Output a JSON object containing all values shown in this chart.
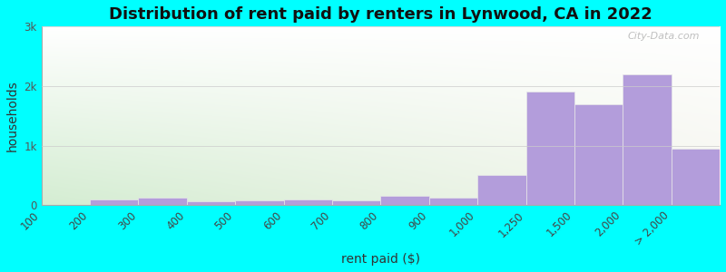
{
  "title": "Distribution of rent paid by renters in Lynwood, CA in 2022",
  "xlabel": "rent paid ($)",
  "ylabel": "households",
  "background_color": "#00FFFF",
  "bar_color": "#b39ddb",
  "bar_edge_color": "#e8e8e8",
  "ytick_labels": [
    "0",
    "1k",
    "2k",
    "3k"
  ],
  "ytick_values": [
    0,
    1000,
    2000,
    3000
  ],
  "ylim": [
    0,
    3000
  ],
  "bin_labels": [
    "100",
    "200",
    "300",
    "400",
    "500",
    "600",
    "700",
    "800",
    "900",
    "1,000",
    "1,250",
    "1,500",
    "2,000",
    "> 2,000"
  ],
  "values": [
    10,
    100,
    120,
    70,
    80,
    100,
    80,
    150,
    120,
    500,
    1900,
    1700,
    2200,
    950
  ],
  "watermark": "City-Data.com",
  "title_fontsize": 13,
  "axis_label_fontsize": 10,
  "tick_fontsize": 8.5
}
